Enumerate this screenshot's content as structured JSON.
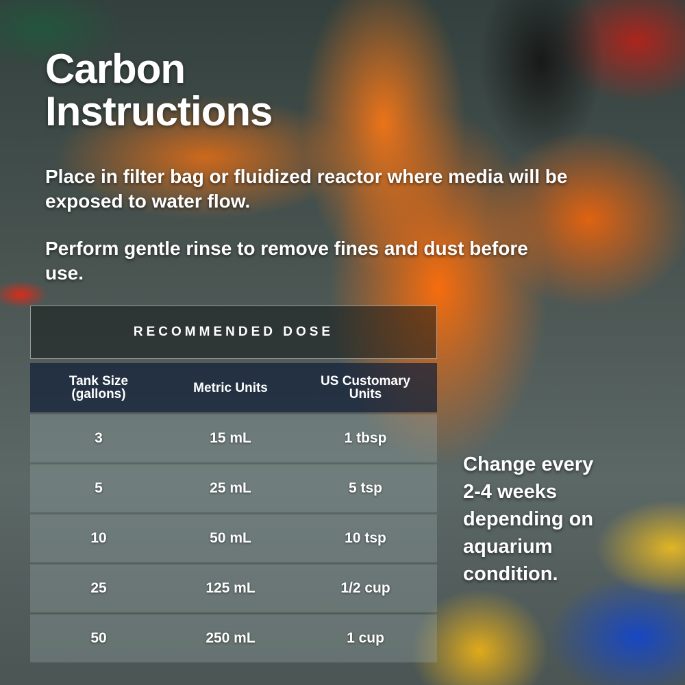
{
  "title_line1": "Carbon",
  "title_line2": "Instructions",
  "instruction1": "Place in filter bag or fluidized reactor where media will be exposed to water flow.",
  "instruction2": "Perform gentle rinse to remove fines and dust before use.",
  "table": {
    "heading": "RECOMMENDED DOSE",
    "columns": [
      {
        "line1": "Tank Size",
        "line2": "(gallons)"
      },
      {
        "line1": "Metric Units",
        "line2": ""
      },
      {
        "line1": "US Customary",
        "line2": "Units"
      }
    ],
    "rows": [
      [
        "3",
        "15 mL",
        "1 tbsp"
      ],
      [
        "5",
        "25 mL",
        "5 tsp"
      ],
      [
        "10",
        "50 mL",
        "10 tsp"
      ],
      [
        "25",
        "125 mL",
        "1/2 cup"
      ],
      [
        "50",
        "250 mL",
        "1 cup"
      ]
    ]
  },
  "side_note": [
    "Change every",
    "2-4 weeks",
    "depending on",
    "aquarium",
    "condition."
  ]
}
